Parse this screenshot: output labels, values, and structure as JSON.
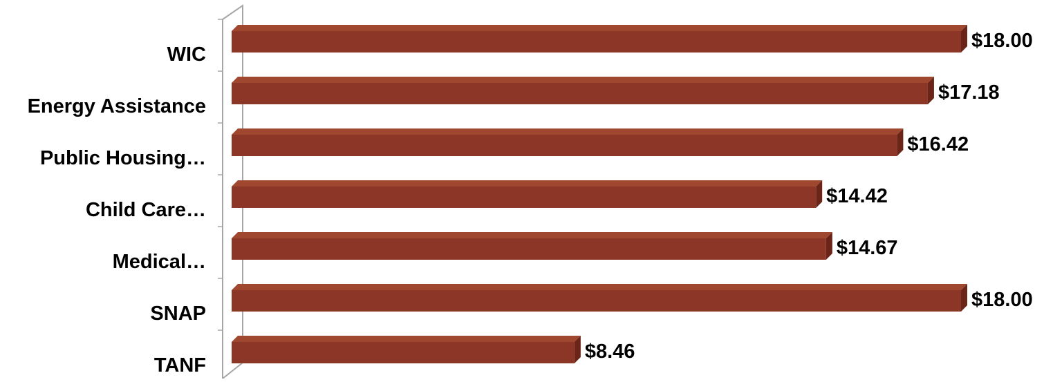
{
  "chart_data": {
    "type": "bar",
    "orientation": "horizontal",
    "categories": [
      "WIC",
      "Energy Assistance",
      "Public Housing…",
      "Child Care…",
      "Medical…",
      "SNAP",
      "TANF"
    ],
    "series": [
      {
        "values": [
          18.0,
          17.18,
          16.42,
          14.42,
          14.67,
          18.0,
          8.46
        ],
        "labels": [
          "$18.00",
          "$17.18",
          "$16.42",
          "$14.42",
          "$14.67",
          "$18.00",
          "$8.46"
        ],
        "color": "#8B3626"
      }
    ],
    "xlim": [
      0,
      18.0
    ],
    "grid": false,
    "legend": "none",
    "style": "3d"
  }
}
